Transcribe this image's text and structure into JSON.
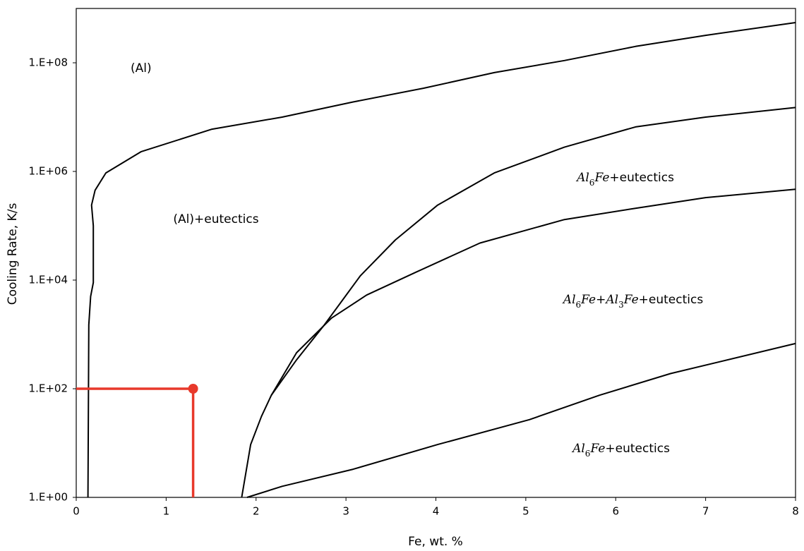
{
  "chart_data": {
    "type": "line",
    "xlabel": "Fe, wt. %",
    "ylabel": "Cooling Rate, K/s",
    "xlim": [
      0,
      8
    ],
    "xticks": [
      0,
      1,
      2,
      3,
      4,
      5,
      6,
      7,
      8
    ],
    "ylim": [
      1,
      1000000000
    ],
    "log_y": true,
    "yticks": [
      {
        "value": 1,
        "label": "1.E+00"
      },
      {
        "value": 100,
        "label": "1.E+02"
      },
      {
        "value": 10000,
        "label": "1.E+04"
      },
      {
        "value": 1000000,
        "label": "1.E+06"
      },
      {
        "value": 100000000,
        "label": "1.E+08"
      }
    ],
    "series": [
      {
        "color": "#000000",
        "x": [
          0.13,
          0.14,
          0.16,
          0.19,
          0.19,
          0.17,
          0.21,
          0.33,
          0.72,
          1.51,
          2.29,
          3.08,
          3.86,
          4.65,
          5.43,
          6.22,
          7.0,
          8.0
        ],
        "values": [
          1,
          1500,
          5000,
          9000,
          100000,
          240000,
          450000,
          940000,
          2300000,
          6000000,
          10000000,
          19000000,
          34000000,
          66000000,
          110000000,
          200000000,
          320000000,
          550000000
        ]
      },
      {
        "color": "#000000",
        "x": [
          1.84,
          1.94,
          2.06,
          2.17,
          2.45,
          2.76,
          3.16,
          3.55,
          4.02,
          4.65,
          5.43,
          6.22,
          7.0,
          8.0
        ],
        "values": [
          1,
          9.4,
          31,
          76,
          340,
          1500,
          12000,
          55000,
          240000,
          940000,
          2800000,
          6600000,
          10000000,
          15000000
        ]
      },
      {
        "color": "#000000",
        "x": [
          2.17,
          2.45,
          2.84,
          3.23,
          3.78,
          4.49,
          5.43,
          6.22,
          7.0,
          8.0
        ],
        "values": [
          76,
          460,
          2000,
          5300,
          14000,
          48000,
          130000,
          210000,
          330000,
          470000
        ]
      },
      {
        "color": "#000000",
        "x": [
          1.9,
          2.29,
          3.08,
          4.02,
          5.04,
          5.82,
          6.61,
          8.0
        ],
        "values": [
          1,
          1.6,
          3.3,
          9.4,
          27,
          76,
          190,
          680
        ]
      }
    ],
    "marker": {
      "x": 1.3,
      "y": 100,
      "color": "#e8392b"
    },
    "annotations": [
      {
        "text": "(Al)",
        "formula": false
      },
      {
        "text": "(Al)+eutectics",
        "formula": false
      },
      {
        "text": "Al6Fe+eutectics",
        "formula": true
      },
      {
        "text": "Al6Fe+Al3Fe+eutectics",
        "formula": true
      },
      {
        "text": "Al6Fe+eutectics",
        "formula": true
      }
    ]
  }
}
